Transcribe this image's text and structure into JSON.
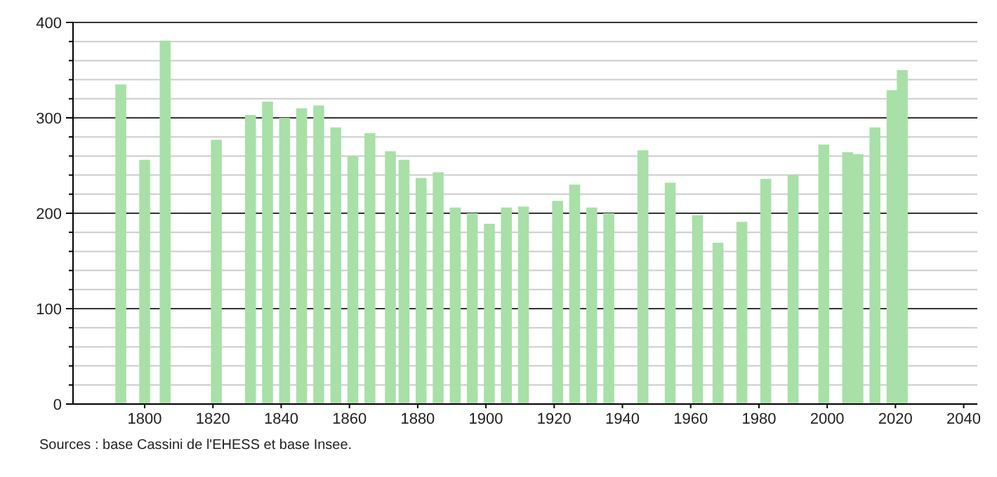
{
  "chart_data": {
    "type": "bar",
    "x": [
      1793,
      1800,
      1806,
      1821,
      1831,
      1836,
      1841,
      1846,
      1851,
      1856,
      1861,
      1866,
      1872,
      1876,
      1881,
      1886,
      1891,
      1896,
      1901,
      1906,
      1911,
      1921,
      1926,
      1931,
      1936,
      1946,
      1954,
      1962,
      1968,
      1975,
      1982,
      1990,
      1999,
      2006,
      2009,
      2014,
      2019,
      2022
    ],
    "values": [
      335,
      256,
      381,
      277,
      303,
      317,
      300,
      310,
      313,
      290,
      260,
      284,
      265,
      256,
      237,
      243,
      206,
      200,
      189,
      206,
      207,
      213,
      230,
      206,
      200,
      266,
      232,
      198,
      169,
      191,
      236,
      240,
      272,
      264,
      262,
      290,
      329,
      350
    ],
    "color": "#a8e0a8",
    "xlim": [
      1779,
      2044
    ],
    "xticks": [
      1800,
      1820,
      1840,
      1860,
      1880,
      1900,
      1920,
      1940,
      1960,
      1980,
      2000,
      2020,
      2040
    ],
    "ylim": [
      0,
      400
    ],
    "yticks": [
      0,
      {
        "value": 20,
        "label": null
      },
      {
        "value": 40,
        "label": null
      },
      {
        "value": 60,
        "label": null
      },
      {
        "value": 80,
        "label": null
      },
      100,
      {
        "value": 120,
        "label": null
      },
      {
        "value": 140,
        "label": null
      },
      {
        "value": 160,
        "label": null
      },
      {
        "value": 180,
        "label": null
      },
      200,
      {
        "value": 220,
        "label": null
      },
      {
        "value": 240,
        "label": null
      },
      {
        "value": 260,
        "label": null
      },
      {
        "value": 280,
        "label": null
      },
      300,
      {
        "value": 320,
        "label": null
      },
      {
        "value": 340,
        "label": null
      },
      {
        "value": 360,
        "label": null
      },
      {
        "value": 380,
        "label": null
      },
      400
    ],
    "grid": true,
    "annotations": [
      "Sources : base Cassini de l'EHESS et base Insee."
    ]
  }
}
